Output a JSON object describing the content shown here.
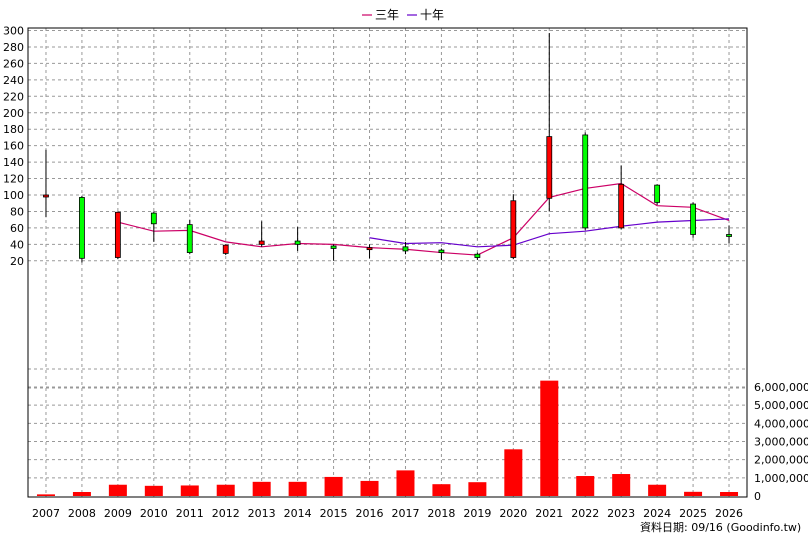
{
  "legend": [
    {
      "label": "三年",
      "color": "#cc0066"
    },
    {
      "label": "十年",
      "color": "#6600cc"
    }
  ],
  "credit": "資料日期: 09/16  (Goodinfo.tw)",
  "colors": {
    "up": "#ff0000",
    "down": "#00ff00",
    "volume": "#ff0000",
    "grid": "#999999",
    "candle_border": "#000000"
  },
  "chart_data": {
    "type": "candlestick",
    "categories": [
      "2007",
      "2008",
      "2009",
      "2010",
      "2011",
      "2012",
      "2013",
      "2014",
      "2015",
      "2016",
      "2017",
      "2018",
      "2019",
      "2020",
      "2021",
      "2022",
      "2023",
      "2024",
      "2025",
      "2026"
    ],
    "price_axis": {
      "ylim": [
        0,
        300
      ],
      "ticks": [
        20,
        40,
        60,
        80,
        100,
        120,
        140,
        160,
        180,
        200,
        220,
        240,
        260,
        280,
        300
      ]
    },
    "volume_axis": {
      "ylim": [
        0,
        6000000
      ],
      "ticks": [
        0,
        1000000,
        2000000,
        3000000,
        4000000,
        5000000,
        6000000
      ],
      "tick_labels": [
        "0",
        "1,000,000",
        "2,000,000",
        "3,000,000",
        "4,000,000",
        "5,000,000",
        "6,000,000"
      ]
    },
    "ohlc": [
      {
        "open": 99,
        "high": 155,
        "low": 73,
        "close": 100
      },
      {
        "open": 97,
        "high": 99,
        "low": 18,
        "close": 23
      },
      {
        "open": 24,
        "high": 80,
        "low": 22,
        "close": 79
      },
      {
        "open": 78,
        "high": 80,
        "low": 43,
        "close": 65
      },
      {
        "open": 64,
        "high": 70,
        "low": 28,
        "close": 30
      },
      {
        "open": 29,
        "high": 40,
        "low": 27,
        "close": 39
      },
      {
        "open": 40,
        "high": 68,
        "low": 37,
        "close": 44
      },
      {
        "open": 44,
        "high": 61,
        "low": 32,
        "close": 40
      },
      {
        "open": 38,
        "high": 40,
        "low": 20,
        "close": 35
      },
      {
        "open": 35,
        "high": 40,
        "low": 23,
        "close": 36
      },
      {
        "open": 37,
        "high": 43,
        "low": 28,
        "close": 32
      },
      {
        "open": 33,
        "high": 35,
        "low": 21,
        "close": 30
      },
      {
        "open": 28,
        "high": 30,
        "low": 21,
        "close": 24
      },
      {
        "open": 24,
        "high": 101,
        "low": 22,
        "close": 93
      },
      {
        "open": 96,
        "high": 297,
        "low": 80,
        "close": 171
      },
      {
        "open": 173,
        "high": 176,
        "low": 57,
        "close": 60
      },
      {
        "open": 60,
        "high": 136,
        "low": 58,
        "close": 113
      },
      {
        "open": 112,
        "high": 113,
        "low": 88,
        "close": 91
      },
      {
        "open": 89,
        "high": 91,
        "low": 48,
        "close": 52
      },
      {
        "open": 52,
        "high": 63,
        "low": 41,
        "close": 50
      }
    ],
    "series": [
      {
        "name": "三年",
        "values": [
          null,
          null,
          67,
          56,
          57,
          43,
          37,
          41,
          40,
          36,
          34,
          30,
          27,
          48,
          97,
          108,
          114,
          87,
          85,
          69
        ]
      },
      {
        "name": "十年",
        "values": [
          null,
          null,
          null,
          null,
          null,
          null,
          null,
          null,
          null,
          48,
          41,
          42,
          37,
          39,
          53,
          56,
          62,
          67,
          69,
          71
        ]
      }
    ],
    "volume": [
      90000,
      220000,
      620000,
      560000,
      580000,
      620000,
      780000,
      780000,
      1050000,
      830000,
      1410000,
      650000,
      760000,
      2570000,
      6350000,
      1100000,
      1210000,
      620000,
      230000,
      220000
    ],
    "grid": true,
    "legend_position": "top-center"
  }
}
